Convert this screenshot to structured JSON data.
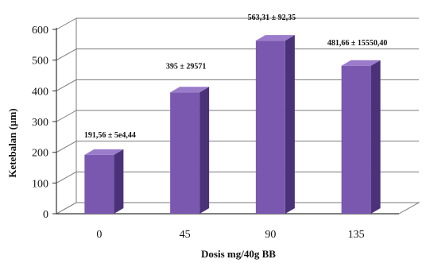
{
  "chart_data": {
    "type": "bar",
    "title": "",
    "xlabel": "Dosis mg/40g BB",
    "ylabel": "Ketebalan (µm)",
    "categories": [
      "0",
      "45",
      "90",
      "135"
    ],
    "values": [
      191.56,
      395,
      563.31,
      481.66
    ],
    "data_labels": [
      "191,56 ± 5e4,44",
      "395 ± 29571",
      "563,31 ± 92,35",
      "481,66 ± 15550,40"
    ],
    "yticks": [
      "0",
      "100",
      "200",
      "300",
      "400",
      "500",
      "600"
    ],
    "ylim": [
      0,
      600
    ],
    "grid": true,
    "legend": "none",
    "bar_color": "#7b58b0",
    "bar_side_color": "#4b3278",
    "bar_top_color": "#9a7ccb"
  }
}
